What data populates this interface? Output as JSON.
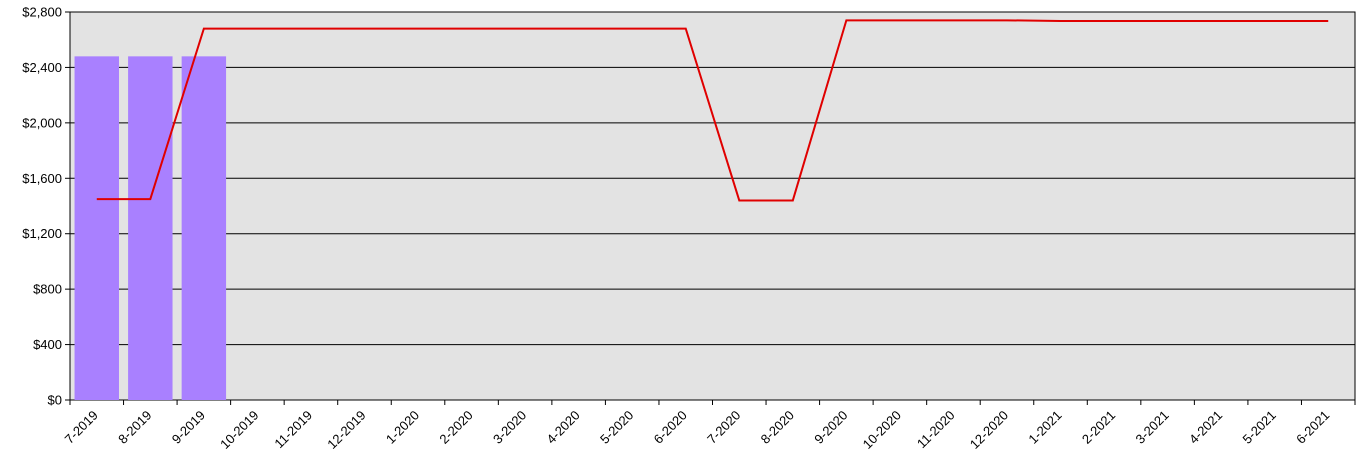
{
  "chart_data": {
    "type": "bar",
    "categories": [
      "7-2019",
      "8-2019",
      "9-2019",
      "10-2019",
      "11-2019",
      "12-2019",
      "1-2020",
      "2-2020",
      "3-2020",
      "4-2020",
      "5-2020",
      "6-2020",
      "7-2020",
      "8-2020",
      "9-2020",
      "10-2020",
      "11-2020",
      "12-2020",
      "1-2021",
      "2-2021",
      "3-2021",
      "4-2021",
      "5-2021",
      "6-2021"
    ],
    "series": [
      {
        "type": "bar",
        "color": "#a980ff",
        "values": [
          2480,
          2480,
          2480,
          null,
          null,
          null,
          null,
          null,
          null,
          null,
          null,
          null,
          null,
          null,
          null,
          null,
          null,
          null,
          null,
          null,
          null,
          null,
          null,
          null
        ]
      },
      {
        "type": "line",
        "color": "#e00000",
        "values": [
          1450,
          1450,
          2680,
          2680,
          2680,
          2680,
          2680,
          2680,
          2680,
          2680,
          2680,
          2680,
          1440,
          1440,
          2740,
          2740,
          2740,
          2740,
          2735,
          2735,
          2735,
          2735,
          2735,
          2735
        ]
      }
    ],
    "ylim": [
      0,
      2800
    ],
    "yticks": [
      0,
      400,
      800,
      1200,
      1600,
      2000,
      2400,
      2800
    ],
    "ytick_labels": [
      "$0",
      "$400",
      "$800",
      "$1,200",
      "$1,600",
      "$2,000",
      "$2,400",
      "$2,800"
    ],
    "grid": true,
    "plot_background": "#e3e3e3",
    "title": "",
    "xlabel": "",
    "ylabel": ""
  }
}
